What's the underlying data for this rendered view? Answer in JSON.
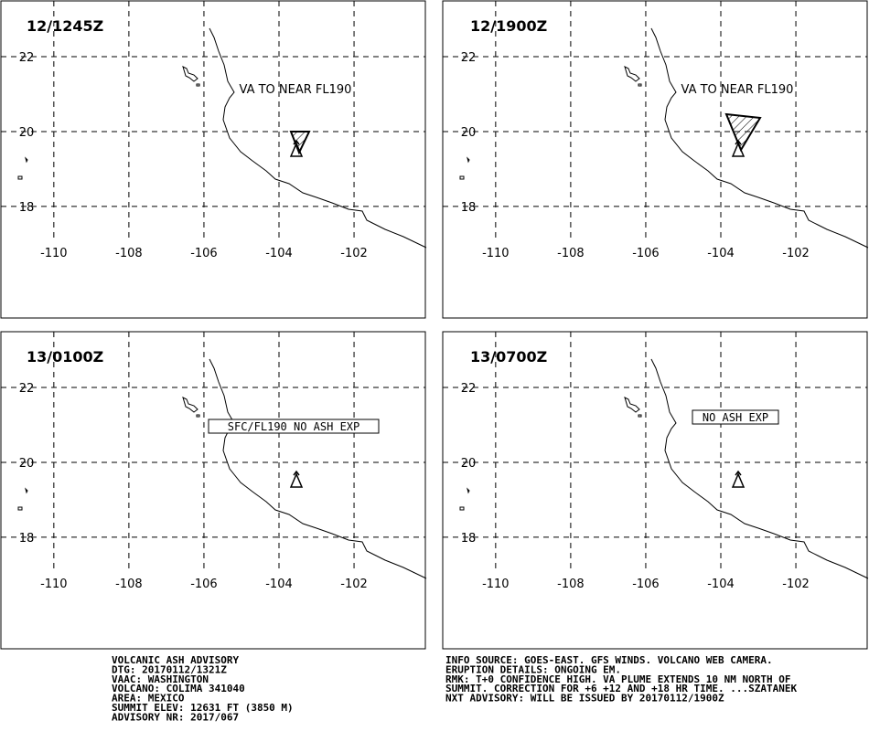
{
  "map": {
    "xlim": [
      -111.41,
      -100.1
    ],
    "ylim": [
      15.02,
      23.49
    ],
    "xticks": [
      -110,
      -108,
      -106,
      -104,
      -102
    ],
    "yticks": [
      18,
      20,
      22
    ]
  },
  "panels": [
    {
      "time": "12/1245Z",
      "label": "VA TO NEAR FL190"
    },
    {
      "time": "12/1900Z",
      "label": "VA TO NEAR FL190"
    },
    {
      "time": "13/0100Z",
      "label": "SFC/FL190 NO ASH EXP"
    },
    {
      "time": "13/0700Z",
      "label": "NO ASH EXP"
    }
  ],
  "footer": {
    "left": [
      "VOLCANIC ASH ADVISORY",
      "DTG: 20170112/1321Z",
      "VAAC: WASHINGTON",
      "VOLCANO: COLIMA 341040",
      "AREA: MEXICO",
      "SUMMIT ELEV: 12631 FT (3850 M)",
      "ADVISORY NR: 2017/067"
    ],
    "right": [
      "INFO SOURCE: GOES-EAST. GFS WINDS. VOLCANO WEB CAMERA.",
      "ERUPTION DETAILS: ONGOING EM.",
      "RMK: T+0 CONFIDENCE HIGH. VA PLUME EXTENDS 10 NM NORTH OF",
      "SUMMIT. CORRECTION FOR +6 +12 AND +18 HR TIME. ...SZATANEK",
      "NXT ADVISORY: WILL BE ISSUED BY 20170112/1900Z"
    ]
  }
}
